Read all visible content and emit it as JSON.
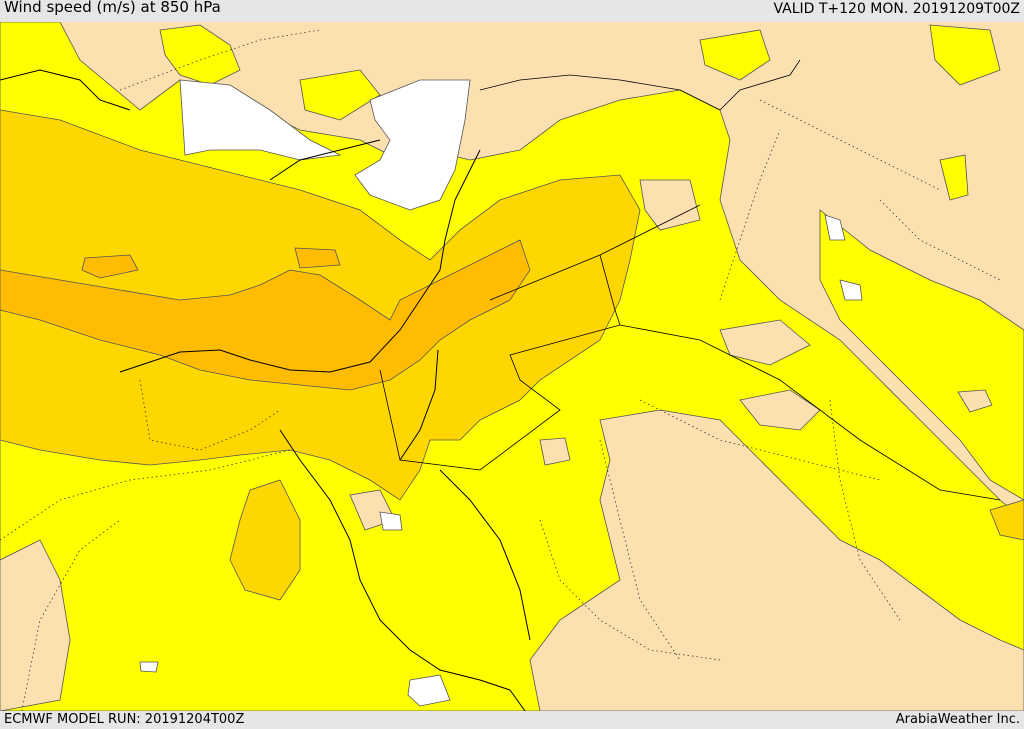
{
  "header": {
    "title": "Wind speed (m/s) at 850 hPa",
    "valid": "VALID T+120 MON. 20191209T00Z"
  },
  "footer": {
    "model_run": "ECMWF MODEL RUN: 20191204T00Z",
    "credit": "ArabiaWeather Inc."
  },
  "colors": {
    "band_lowest": "#ffffff",
    "band_low": "#fde0b0",
    "band_mid": "#ffff00",
    "band_high": "#ffd700",
    "band_highest": "#ffbc00",
    "sea_land_mask": "#ffffff"
  },
  "map": {
    "region": "Eastern Mediterranean and Arabian Peninsula",
    "level_hpa": 850
  }
}
